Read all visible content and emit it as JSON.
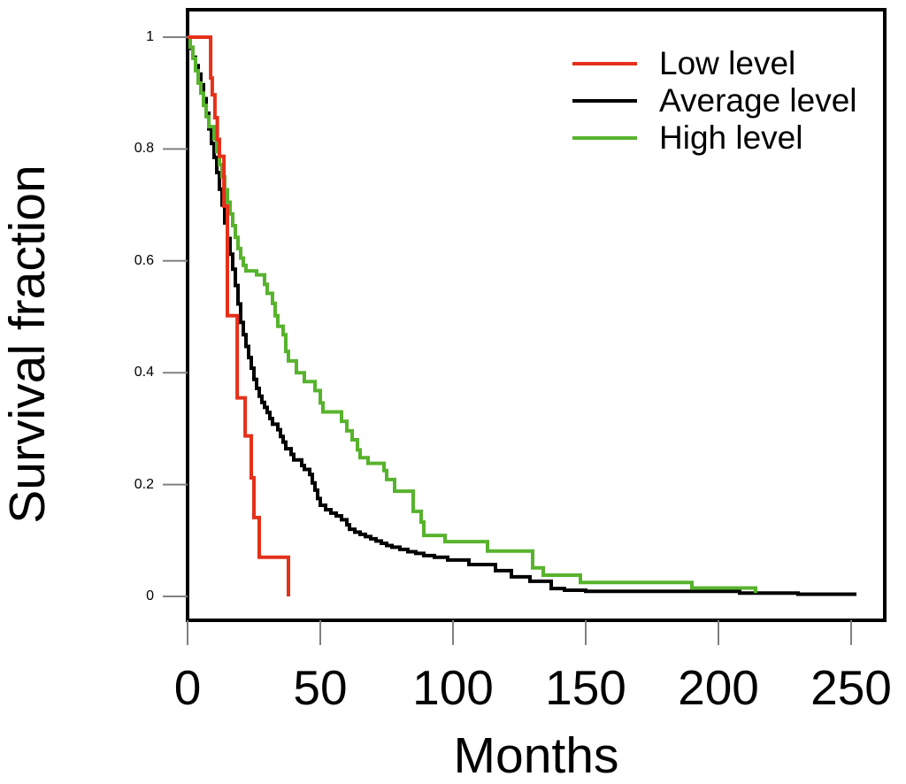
{
  "figure": {
    "background_color": "#ffffff",
    "text_color": "#000000",
    "axis_border_color": "#000000",
    "tick_mark_color": "#808080"
  },
  "chart_data": {
    "type": "line",
    "subtype": "kaplan-meier-step-survival",
    "title": "",
    "xlabel": "Months",
    "ylabel": "Survival fraction",
    "xlim": [
      0,
      262
    ],
    "ylim": [
      0,
      1
    ],
    "xticks": [
      0,
      50,
      100,
      150,
      200,
      250
    ],
    "xtick_labels": [
      "0",
      "50",
      "100",
      "150",
      "200",
      "250"
    ],
    "yticks": [
      1,
      0.8,
      0.6,
      0.4,
      0.2,
      0
    ],
    "ytick_labels": [
      "1",
      "0.8",
      "0.6",
      "0.4",
      "0.2",
      "0"
    ],
    "grid": false,
    "legend": {
      "position": "top-right",
      "entries": [
        "Low level",
        "Average level",
        "High level"
      ]
    },
    "series": [
      {
        "name": "Low level",
        "color": "#e5301a",
        "points": [
          [
            0,
            1.0
          ],
          [
            8.7,
            0.927
          ],
          [
            9.3,
            0.897
          ],
          [
            10.3,
            0.856
          ],
          [
            11.2,
            0.817
          ],
          [
            12,
            0.787
          ],
          [
            13.7,
            0.698
          ],
          [
            15,
            0.502
          ],
          [
            18.7,
            0.355
          ],
          [
            21.7,
            0.287
          ],
          [
            24,
            0.212
          ],
          [
            25,
            0.141
          ],
          [
            27,
            0.07
          ],
          [
            38,
            0.0
          ]
        ]
      },
      {
        "name": "Average level",
        "color": "#000000",
        "points": [
          [
            0,
            1.0
          ],
          [
            1,
            0.98
          ],
          [
            2,
            0.964
          ],
          [
            3,
            0.949
          ],
          [
            4,
            0.934
          ],
          [
            5,
            0.915
          ],
          [
            6,
            0.89
          ],
          [
            7,
            0.864
          ],
          [
            8,
            0.836
          ],
          [
            9,
            0.81
          ],
          [
            10,
            0.785
          ],
          [
            11,
            0.758
          ],
          [
            12,
            0.728
          ],
          [
            13,
            0.7
          ],
          [
            14,
            0.668
          ],
          [
            15,
            0.64
          ],
          [
            16,
            0.612
          ],
          [
            17,
            0.585
          ],
          [
            18,
            0.556
          ],
          [
            19,
            0.523
          ],
          [
            20,
            0.49
          ],
          [
            21,
            0.468
          ],
          [
            22,
            0.447
          ],
          [
            23,
            0.427
          ],
          [
            24,
            0.408
          ],
          [
            25,
            0.388
          ],
          [
            26,
            0.372
          ],
          [
            27,
            0.358
          ],
          [
            28,
            0.347
          ],
          [
            29,
            0.338
          ],
          [
            30,
            0.329
          ],
          [
            31,
            0.318
          ],
          [
            32,
            0.308
          ],
          [
            34,
            0.298
          ],
          [
            35,
            0.286
          ],
          [
            36,
            0.276
          ],
          [
            37,
            0.264
          ],
          [
            39,
            0.254
          ],
          [
            40,
            0.244
          ],
          [
            43,
            0.234
          ],
          [
            44,
            0.227
          ],
          [
            46,
            0.218
          ],
          [
            47,
            0.203
          ],
          [
            48,
            0.19
          ],
          [
            49,
            0.175
          ],
          [
            50,
            0.163
          ],
          [
            52,
            0.155
          ],
          [
            54,
            0.149
          ],
          [
            56,
            0.144
          ],
          [
            58,
            0.137
          ],
          [
            60,
            0.128
          ],
          [
            61,
            0.12
          ],
          [
            63,
            0.115
          ],
          [
            65,
            0.111
          ],
          [
            67,
            0.107
          ],
          [
            69,
            0.103
          ],
          [
            71,
            0.099
          ],
          [
            73,
            0.095
          ],
          [
            75,
            0.091
          ],
          [
            77,
            0.088
          ],
          [
            80,
            0.084
          ],
          [
            83,
            0.08
          ],
          [
            86,
            0.077
          ],
          [
            89,
            0.073
          ],
          [
            93,
            0.07
          ],
          [
            98,
            0.065
          ],
          [
            106,
            0.057
          ],
          [
            116,
            0.046
          ],
          [
            122,
            0.035
          ],
          [
            129,
            0.027
          ],
          [
            137,
            0.014
          ],
          [
            142,
            0.011
          ],
          [
            150,
            0.009
          ],
          [
            208,
            0.006
          ],
          [
            230,
            0.004
          ],
          [
            252,
            0.004
          ]
        ]
      },
      {
        "name": "High level",
        "color": "#57b32c",
        "points": [
          [
            0,
            1.0
          ],
          [
            1,
            0.982
          ],
          [
            2,
            0.962
          ],
          [
            3,
            0.94
          ],
          [
            4,
            0.918
          ],
          [
            5,
            0.9
          ],
          [
            6,
            0.878
          ],
          [
            7,
            0.858
          ],
          [
            8,
            0.84
          ],
          [
            10,
            0.818
          ],
          [
            11,
            0.795
          ],
          [
            12,
            0.772
          ],
          [
            13,
            0.75
          ],
          [
            14,
            0.727
          ],
          [
            15,
            0.705
          ],
          [
            16,
            0.684
          ],
          [
            17,
            0.663
          ],
          [
            18,
            0.642
          ],
          [
            19,
            0.622
          ],
          [
            20,
            0.605
          ],
          [
            21,
            0.592
          ],
          [
            22,
            0.582
          ],
          [
            26,
            0.575
          ],
          [
            29,
            0.558
          ],
          [
            30,
            0.542
          ],
          [
            32,
            0.524
          ],
          [
            33,
            0.502
          ],
          [
            34,
            0.483
          ],
          [
            36,
            0.468
          ],
          [
            37,
            0.438
          ],
          [
            38,
            0.421
          ],
          [
            41,
            0.4
          ],
          [
            44,
            0.384
          ],
          [
            48,
            0.368
          ],
          [
            50,
            0.346
          ],
          [
            51,
            0.33
          ],
          [
            58,
            0.313
          ],
          [
            60,
            0.296
          ],
          [
            62,
            0.28
          ],
          [
            64,
            0.262
          ],
          [
            65,
            0.248
          ],
          [
            68,
            0.238
          ],
          [
            74,
            0.225
          ],
          [
            75,
            0.209
          ],
          [
            78,
            0.188
          ],
          [
            85,
            0.152
          ],
          [
            88,
            0.133
          ],
          [
            89,
            0.109
          ],
          [
            97,
            0.098
          ],
          [
            113,
            0.081
          ],
          [
            130,
            0.051
          ],
          [
            134,
            0.038
          ],
          [
            148,
            0.025
          ],
          [
            190,
            0.015
          ],
          [
            214,
            0.006
          ]
        ]
      }
    ]
  }
}
